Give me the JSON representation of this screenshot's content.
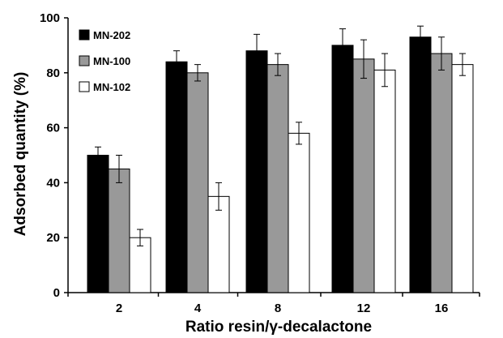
{
  "chart_data": {
    "type": "bar",
    "title": "",
    "xlabel": "Ratio resin/γ-decalactone",
    "ylabel": "Adsorbed quantity (%)",
    "categories": [
      "2",
      "4",
      "8",
      "12",
      "16"
    ],
    "ylim": [
      0,
      100
    ],
    "yticks": [
      0,
      20,
      40,
      60,
      80,
      100
    ],
    "grid": false,
    "legend_position": "top-left",
    "series": [
      {
        "name": "MN-202",
        "color": "#000000",
        "values": [
          50,
          84,
          88,
          90,
          93
        ],
        "errors": [
          3,
          4,
          6,
          6,
          4
        ]
      },
      {
        "name": "MN-100",
        "color": "#999999",
        "values": [
          45,
          80,
          83,
          85,
          87
        ],
        "errors": [
          5,
          3,
          4,
          7,
          6
        ]
      },
      {
        "name": "MN-102",
        "color": "#ffffff",
        "values": [
          20,
          35,
          58,
          81,
          83
        ],
        "errors": [
          3,
          5,
          4,
          6,
          4
        ]
      }
    ]
  }
}
